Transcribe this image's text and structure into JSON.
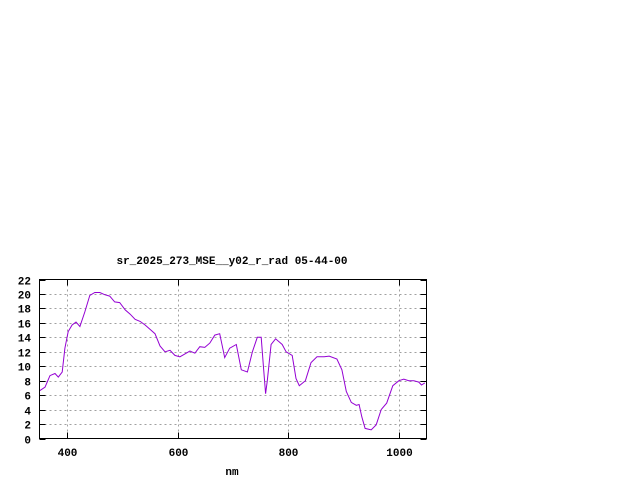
{
  "chart_data": {
    "type": "line",
    "title": "sr_2025_273_MSE__y02_r_rad 05-44-00",
    "xlabel": "nm",
    "ylabel": "",
    "xlim": [
      350,
      1050
    ],
    "ylim": [
      0,
      22
    ],
    "xticks": [
      400,
      600,
      800,
      1000
    ],
    "yticks": [
      0,
      2,
      4,
      6,
      8,
      10,
      12,
      14,
      16,
      18,
      20,
      22
    ],
    "grid": true,
    "line_color": "#9400d3",
    "series": [
      {
        "x": [
          350,
          360,
          369,
          378,
          384,
          391,
          396,
          402,
          409,
          416,
          423,
          432,
          441,
          450,
          459,
          468,
          477,
          486,
          495,
          505,
          514,
          523,
          532,
          541,
          550,
          559,
          568,
          577,
          586,
          595,
          604,
          622,
          631,
          640,
          649,
          658,
          667,
          676,
          685,
          694,
          706,
          715,
          726,
          735,
          744,
          751,
          755,
          759,
          762,
          769,
          777,
          789,
          796,
          807,
          814,
          820,
          831,
          841,
          852,
          865,
          874,
          888,
          897,
          905,
          914,
          923,
          928,
          933,
          939,
          950,
          959,
          968,
          978,
          989,
          1000,
          1009,
          1018,
          1027,
          1036,
          1041,
          1047
        ],
        "y": [
          6.6,
          7.1,
          8.7,
          9.0,
          8.5,
          9.2,
          12.5,
          14.8,
          15.7,
          16.1,
          15.5,
          17.5,
          19.8,
          20.2,
          20.2,
          19.9,
          19.7,
          18.9,
          18.8,
          17.8,
          17.2,
          16.5,
          16.2,
          15.7,
          15.1,
          14.5,
          12.8,
          12.0,
          12.2,
          11.5,
          11.3,
          12.1,
          11.8,
          12.7,
          12.6,
          13.2,
          14.3,
          14.5,
          11.2,
          12.5,
          13.0,
          9.5,
          9.2,
          12.0,
          14.0,
          14.0,
          10.0,
          6.2,
          8.0,
          13.0,
          13.8,
          13.0,
          12.0,
          11.5,
          8.3,
          7.3,
          8.0,
          10.5,
          11.3,
          11.3,
          11.4,
          11.0,
          9.5,
          6.5,
          5.0,
          4.6,
          4.7,
          3.0,
          1.4,
          1.2,
          1.9,
          4.0,
          4.9,
          7.3,
          8.0,
          8.2,
          8.0,
          8.0,
          7.8,
          7.4,
          7.7
        ]
      }
    ]
  }
}
